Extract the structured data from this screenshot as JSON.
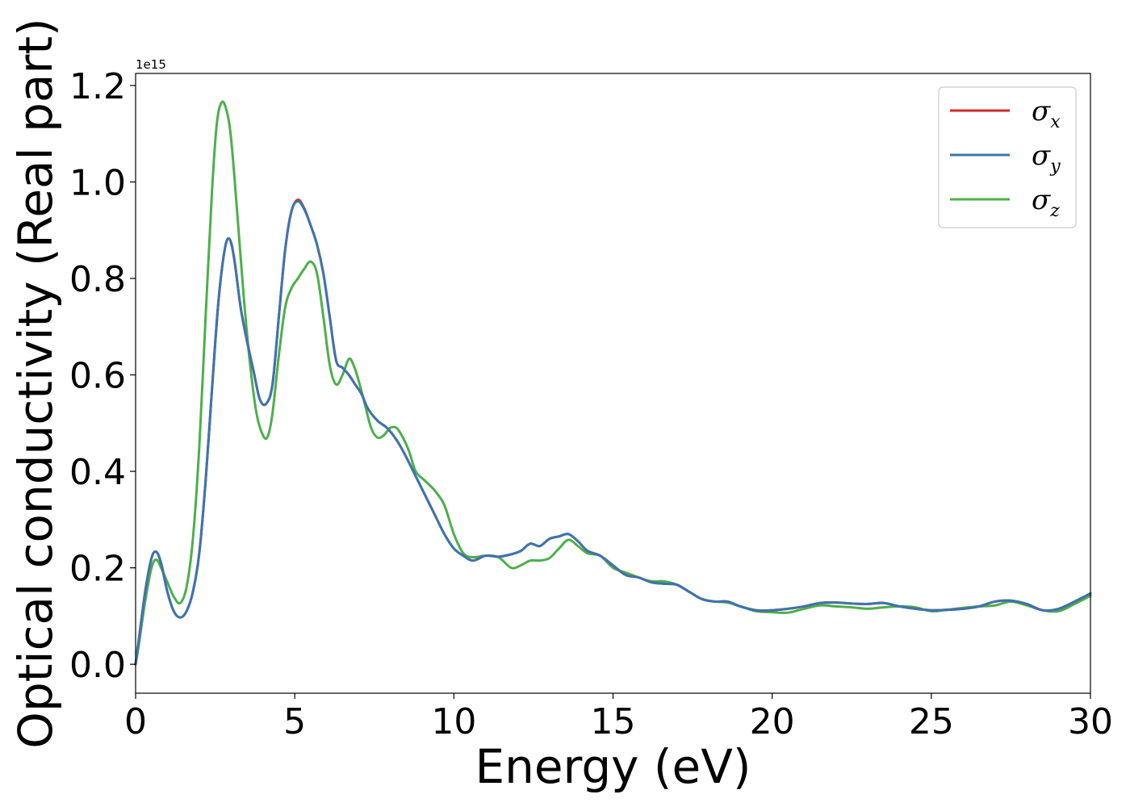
{
  "chart_data": {
    "type": "line",
    "title": "",
    "xlabel": "Energy (eV)",
    "ylabel": "Optical conductivity (Real part)",
    "y_offset_label": "1e15",
    "y_multiplier": 1000000000000000.0,
    "xlim": [
      0,
      30
    ],
    "ylim": [
      -0.06,
      1.225
    ],
    "xticks": [
      0,
      5,
      10,
      15,
      20,
      25,
      30
    ],
    "xtick_labels": [
      "0",
      "5",
      "10",
      "15",
      "20",
      "25",
      "30"
    ],
    "yticks": [
      0.0,
      0.2,
      0.4,
      0.6,
      0.8,
      1.0,
      1.2
    ],
    "ytick_labels": [
      "0.0",
      "0.2",
      "0.4",
      "0.6",
      "0.8",
      "1.0",
      "1.2"
    ],
    "grid": false,
    "legend_position": "top-right",
    "series": [
      {
        "name": "σx",
        "symbol": "σ",
        "subscript": "x",
        "color": "#d62728",
        "x": [
          0,
          0.1,
          0.3,
          0.5,
          0.65,
          0.8,
          1.0,
          1.2,
          1.4,
          1.6,
          1.8,
          2.0,
          2.2,
          2.4,
          2.6,
          2.8,
          2.95,
          3.1,
          3.3,
          3.5,
          3.7,
          3.9,
          4.1,
          4.3,
          4.5,
          4.7,
          4.9,
          5.1,
          5.3,
          5.5,
          5.7,
          5.9,
          6.1,
          6.3,
          6.5,
          6.7,
          6.9,
          7.1,
          7.3,
          7.6,
          7.9,
          8.2,
          8.5,
          8.8,
          9.1,
          9.4,
          9.7,
          10.0,
          10.3,
          10.6,
          11.0,
          11.4,
          11.8,
          12.1,
          12.4,
          12.7,
          13.0,
          13.3,
          13.6,
          13.9,
          14.2,
          14.6,
          15.0,
          15.4,
          15.8,
          16.2,
          16.6,
          17.0,
          17.4,
          17.8,
          18.2,
          18.6,
          19.0,
          19.5,
          20.0,
          20.5,
          21.0,
          21.5,
          22.0,
          22.5,
          23.0,
          23.5,
          24.0,
          24.5,
          25.0,
          25.5,
          26.0,
          26.5,
          27.0,
          27.5,
          28.0,
          28.5,
          29.0,
          29.5,
          30.0
        ],
        "y": [
          0.0,
          0.05,
          0.15,
          0.22,
          0.233,
          0.21,
          0.15,
          0.11,
          0.097,
          0.11,
          0.15,
          0.23,
          0.38,
          0.57,
          0.75,
          0.86,
          0.882,
          0.84,
          0.74,
          0.67,
          0.61,
          0.55,
          0.54,
          0.58,
          0.72,
          0.86,
          0.94,
          0.963,
          0.945,
          0.91,
          0.87,
          0.81,
          0.72,
          0.63,
          0.615,
          0.6,
          0.58,
          0.56,
          0.53,
          0.505,
          0.49,
          0.465,
          0.43,
          0.39,
          0.35,
          0.31,
          0.27,
          0.24,
          0.225,
          0.215,
          0.225,
          0.223,
          0.228,
          0.235,
          0.25,
          0.245,
          0.26,
          0.265,
          0.27,
          0.255,
          0.235,
          0.225,
          0.205,
          0.185,
          0.18,
          0.17,
          0.167,
          0.165,
          0.15,
          0.135,
          0.13,
          0.13,
          0.12,
          0.112,
          0.112,
          0.115,
          0.12,
          0.127,
          0.128,
          0.126,
          0.125,
          0.127,
          0.12,
          0.115,
          0.112,
          0.113,
          0.115,
          0.12,
          0.13,
          0.132,
          0.125,
          0.112,
          0.115,
          0.13,
          0.147
        ]
      },
      {
        "name": "σy",
        "symbol": "σ",
        "subscript": "y",
        "color": "#3a75b0",
        "x": [
          0,
          0.1,
          0.3,
          0.5,
          0.65,
          0.8,
          1.0,
          1.2,
          1.4,
          1.6,
          1.8,
          2.0,
          2.2,
          2.4,
          2.6,
          2.8,
          2.95,
          3.1,
          3.3,
          3.5,
          3.7,
          3.9,
          4.1,
          4.3,
          4.5,
          4.7,
          4.9,
          5.1,
          5.3,
          5.5,
          5.7,
          5.9,
          6.1,
          6.3,
          6.5,
          6.7,
          6.9,
          7.1,
          7.3,
          7.6,
          7.9,
          8.2,
          8.5,
          8.8,
          9.1,
          9.4,
          9.7,
          10.0,
          10.3,
          10.6,
          11.0,
          11.4,
          11.8,
          12.1,
          12.4,
          12.7,
          13.0,
          13.3,
          13.6,
          13.9,
          14.2,
          14.6,
          15.0,
          15.4,
          15.8,
          16.2,
          16.6,
          17.0,
          17.4,
          17.8,
          18.2,
          18.6,
          19.0,
          19.5,
          20.0,
          20.5,
          21.0,
          21.5,
          22.0,
          22.5,
          23.0,
          23.5,
          24.0,
          24.5,
          25.0,
          25.5,
          26.0,
          26.5,
          27.0,
          27.5,
          28.0,
          28.5,
          29.0,
          29.5,
          30.0
        ],
        "y": [
          0.0,
          0.05,
          0.15,
          0.22,
          0.233,
          0.21,
          0.15,
          0.11,
          0.097,
          0.11,
          0.15,
          0.23,
          0.38,
          0.57,
          0.75,
          0.86,
          0.882,
          0.84,
          0.74,
          0.67,
          0.61,
          0.55,
          0.54,
          0.58,
          0.72,
          0.86,
          0.94,
          0.96,
          0.943,
          0.91,
          0.87,
          0.81,
          0.72,
          0.63,
          0.615,
          0.6,
          0.58,
          0.56,
          0.53,
          0.505,
          0.49,
          0.465,
          0.43,
          0.39,
          0.35,
          0.31,
          0.27,
          0.24,
          0.225,
          0.215,
          0.225,
          0.223,
          0.228,
          0.235,
          0.25,
          0.245,
          0.26,
          0.265,
          0.27,
          0.255,
          0.235,
          0.225,
          0.205,
          0.185,
          0.18,
          0.17,
          0.167,
          0.165,
          0.15,
          0.135,
          0.13,
          0.13,
          0.12,
          0.112,
          0.112,
          0.115,
          0.12,
          0.127,
          0.128,
          0.126,
          0.125,
          0.127,
          0.12,
          0.115,
          0.112,
          0.113,
          0.115,
          0.12,
          0.13,
          0.132,
          0.125,
          0.112,
          0.115,
          0.13,
          0.147
        ]
      },
      {
        "name": "σz",
        "symbol": "σ",
        "subscript": "z",
        "color": "#4daf4a",
        "x": [
          0,
          0.1,
          0.3,
          0.5,
          0.65,
          0.8,
          1.0,
          1.2,
          1.4,
          1.6,
          1.8,
          2.0,
          2.2,
          2.4,
          2.55,
          2.7,
          2.85,
          3.0,
          3.2,
          3.4,
          3.6,
          3.8,
          4.0,
          4.15,
          4.3,
          4.5,
          4.7,
          4.9,
          5.1,
          5.3,
          5.5,
          5.7,
          5.9,
          6.1,
          6.3,
          6.5,
          6.7,
          6.85,
          7.0,
          7.2,
          7.4,
          7.6,
          7.8,
          8.0,
          8.2,
          8.4,
          8.6,
          8.8,
          9.1,
          9.4,
          9.7,
          10.0,
          10.3,
          10.6,
          11.0,
          11.4,
          11.8,
          12.1,
          12.4,
          12.7,
          13.0,
          13.3,
          13.6,
          13.9,
          14.2,
          14.6,
          15.0,
          15.4,
          15.8,
          16.2,
          16.6,
          17.0,
          17.4,
          17.8,
          18.2,
          18.6,
          19.0,
          19.5,
          20.0,
          20.5,
          21.0,
          21.5,
          22.0,
          22.5,
          23.0,
          23.5,
          24.0,
          24.5,
          25.0,
          25.5,
          26.0,
          26.5,
          27.0,
          27.5,
          28.0,
          28.5,
          29.0,
          29.5,
          30.0
        ],
        "y": [
          0.0,
          0.04,
          0.13,
          0.2,
          0.217,
          0.2,
          0.17,
          0.14,
          0.127,
          0.16,
          0.26,
          0.45,
          0.72,
          0.98,
          1.12,
          1.165,
          1.15,
          1.09,
          0.93,
          0.76,
          0.62,
          0.52,
          0.475,
          0.472,
          0.52,
          0.64,
          0.74,
          0.78,
          0.8,
          0.82,
          0.835,
          0.81,
          0.72,
          0.62,
          0.58,
          0.6,
          0.633,
          0.62,
          0.59,
          0.54,
          0.49,
          0.47,
          0.475,
          0.49,
          0.49,
          0.47,
          0.44,
          0.4,
          0.38,
          0.36,
          0.33,
          0.27,
          0.23,
          0.222,
          0.225,
          0.222,
          0.2,
          0.205,
          0.215,
          0.215,
          0.22,
          0.24,
          0.258,
          0.245,
          0.23,
          0.225,
          0.2,
          0.19,
          0.18,
          0.172,
          0.172,
          0.165,
          0.15,
          0.135,
          0.13,
          0.128,
          0.12,
          0.11,
          0.108,
          0.107,
          0.115,
          0.122,
          0.12,
          0.118,
          0.115,
          0.118,
          0.12,
          0.118,
          0.11,
          0.113,
          0.117,
          0.12,
          0.122,
          0.13,
          0.122,
          0.112,
          0.11,
          0.125,
          0.142
        ]
      }
    ]
  }
}
